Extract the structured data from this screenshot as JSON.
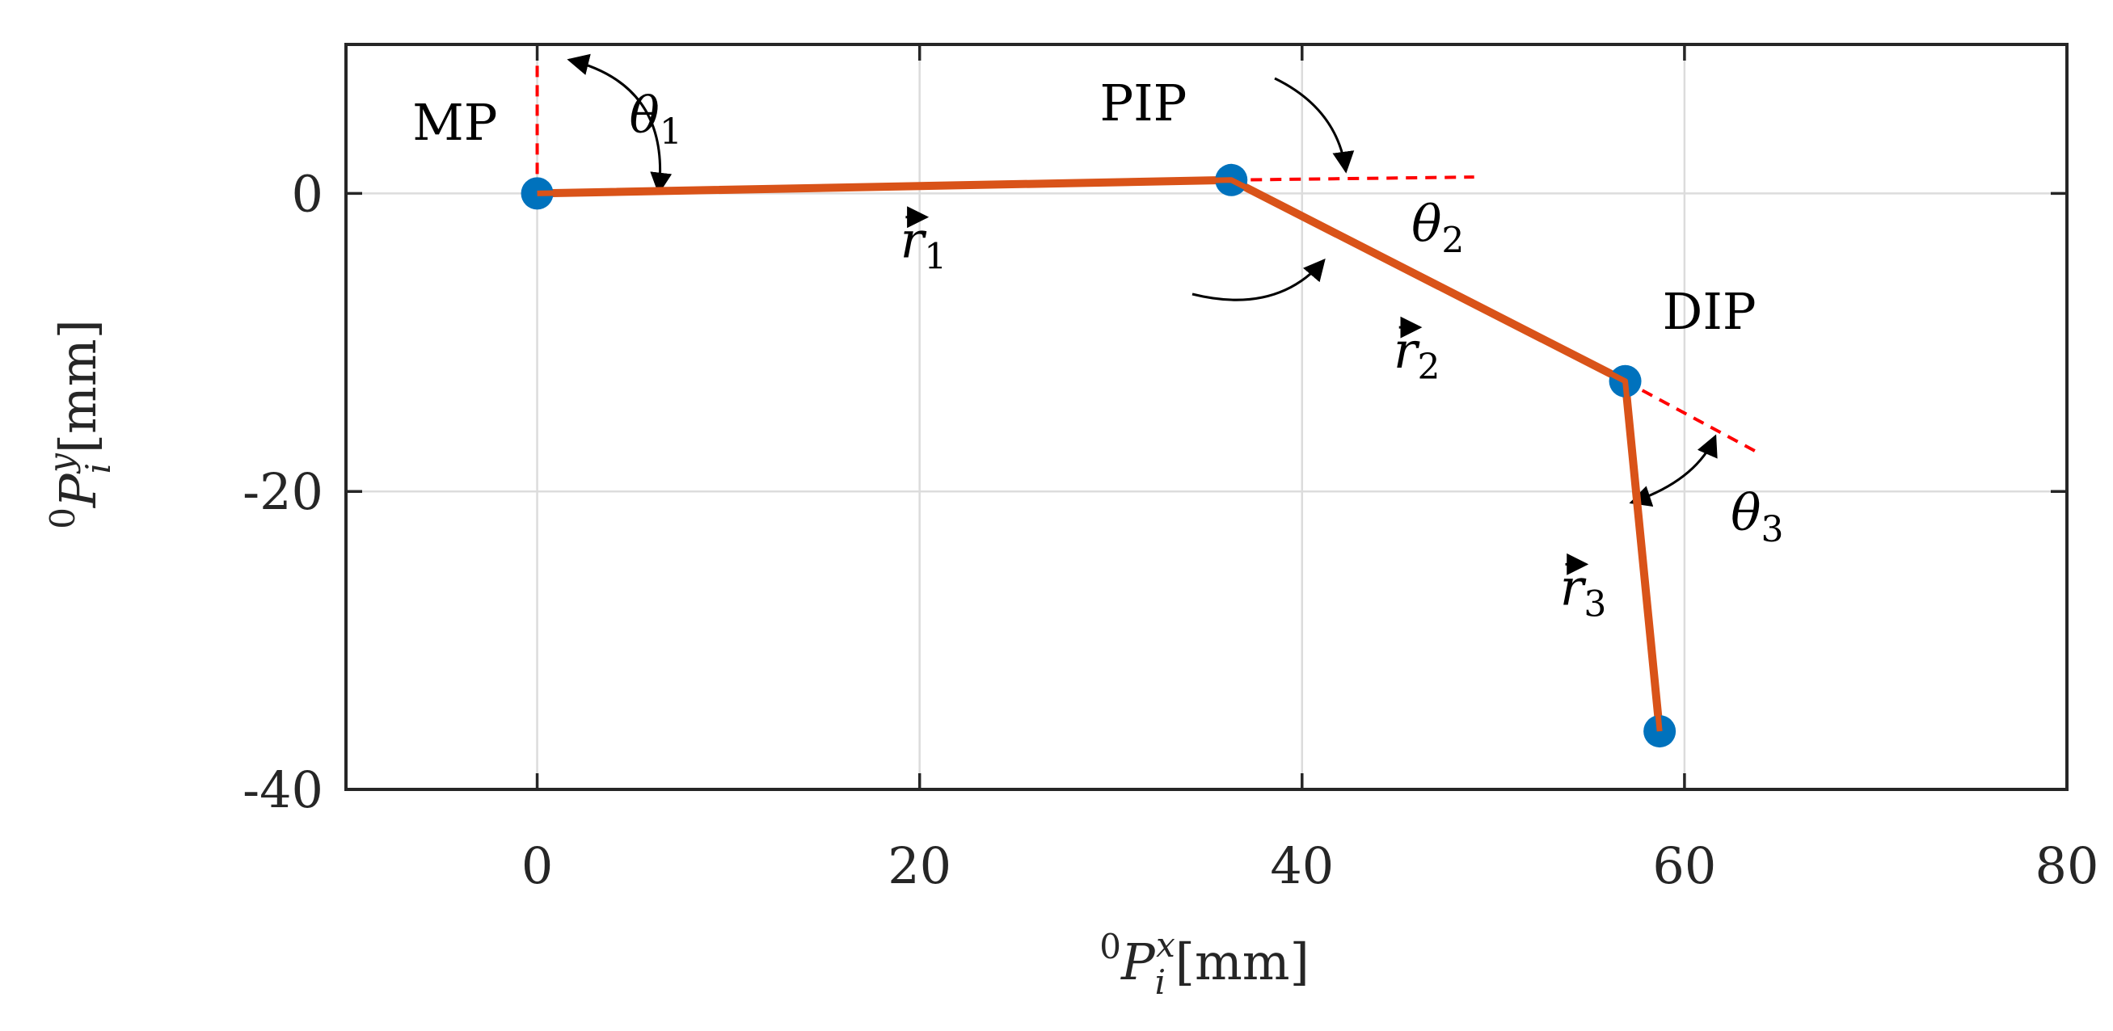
{
  "chart_data": {
    "type": "line",
    "title": "",
    "xlabel": {
      "sup": "0",
      "main": "P",
      "sub": "i",
      "sup2": "x",
      "unit": "[mm]"
    },
    "ylabel": {
      "sup": "0",
      "main": "P",
      "sub": "i",
      "sup2": "y",
      "unit": "[mm]"
    },
    "xlim": [
      -10,
      80
    ],
    "ylim": [
      -40,
      10
    ],
    "xticks": [
      0,
      20,
      40,
      60,
      80
    ],
    "yticks": [
      -40,
      -20,
      0
    ],
    "xtick_labels": [
      "0",
      "20",
      "40",
      "60",
      "80"
    ],
    "ytick_labels": [
      "-40",
      "-20",
      "0"
    ],
    "grid": true,
    "series": [
      {
        "points": [
          {
            "x": 0,
            "y": 0
          },
          {
            "x": 36.3,
            "y": 0.9
          },
          {
            "x": 56.9,
            "y": -12.6
          },
          {
            "x": 58.7,
            "y": -36.1
          }
        ]
      }
    ],
    "reference_lines": [
      {
        "from": {
          "x": 0,
          "y": 0
        },
        "to": {
          "x": 0,
          "y": 9
        }
      },
      {
        "from": {
          "x": 36.3,
          "y": 0.9
        },
        "to": {
          "x": 49,
          "y": 1.1
        }
      },
      {
        "from": {
          "x": 56.9,
          "y": -12.6
        },
        "to": {
          "x": 64,
          "y": -17.5
        }
      }
    ],
    "joint_labels": [
      {
        "text": "MP",
        "x": -4.3,
        "y": 3.6
      },
      {
        "text": "PIP",
        "x": 31.7,
        "y": 4.9
      },
      {
        "text": "DIP",
        "x": 61.3,
        "y": -9.1
      }
    ],
    "angle_labels": [
      {
        "symbol": "θ",
        "sub": "1",
        "x": 6.2,
        "y": 4.1
      },
      {
        "symbol": "θ",
        "sub": "2",
        "x": 47.1,
        "y": -3.2
      },
      {
        "symbol": "θ",
        "sub": "3",
        "x": 63.8,
        "y": -22.6
      }
    ],
    "link_labels": [
      {
        "symbol": "r",
        "sub": "1",
        "x": 20.2,
        "y": -4.3
      },
      {
        "symbol": "r",
        "sub": "2",
        "x": 46.0,
        "y": -11.7
      },
      {
        "symbol": "r",
        "sub": "3",
        "x": 54.7,
        "y": -27.6
      }
    ],
    "colors": {
      "link": "#d95319",
      "joint": "#0072bd",
      "reference": "#ff0000",
      "grid": "#dcdcdc",
      "axis": "#262626"
    }
  }
}
